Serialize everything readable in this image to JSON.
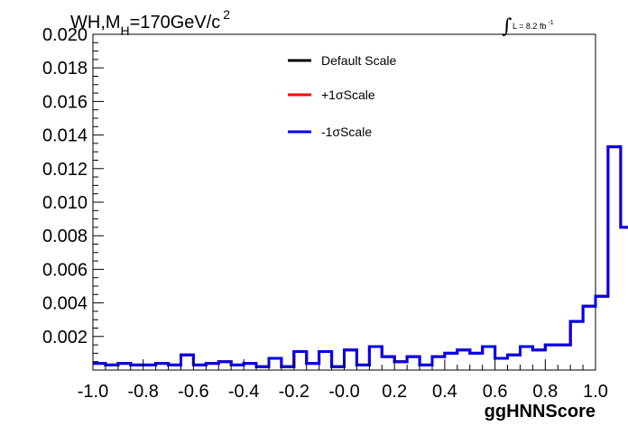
{
  "chart_data": {
    "type": "line",
    "title": {
      "main": "WH,M",
      "sub": "H",
      "rest": "=170GeV/c",
      "sup": "2"
    },
    "lumi": {
      "integral": "∫",
      "text": "L = 8.2 fb",
      "sup": "-1"
    },
    "xlabel": "ggHNNScore",
    "ylabel": "",
    "xlim": [
      -1.0,
      1.0
    ],
    "ylim": [
      0,
      0.02
    ],
    "xticks": [
      "-1.0",
      "-0.8",
      "-0.6",
      "-0.4",
      "-0.2",
      "-0.0",
      "0.2",
      "0.4",
      "0.6",
      "0.8",
      "1.0"
    ],
    "yticks": [
      "0.002",
      "0.004",
      "0.006",
      "0.008",
      "0.010",
      "0.012",
      "0.014",
      "0.016",
      "0.018",
      "0.020"
    ],
    "grid": false,
    "legend_position": "top-center",
    "bin_edges_start": -1.0,
    "bin_width": 0.05,
    "series": [
      {
        "name": "Default Scale",
        "color": "#000000",
        "values": [
          0.0004,
          0.0003,
          0.0004,
          0.0003,
          0.0003,
          0.0004,
          0.0003,
          0.0009,
          0.0003,
          0.0004,
          0.0005,
          0.0003,
          0.0004,
          0.0002,
          0.0007,
          0.0002,
          0.0011,
          0.0004,
          0.0011,
          0.0002,
          0.0012,
          0.0003,
          0.0014,
          0.0008,
          0.0005,
          0.0008,
          0.0003,
          0.0008,
          0.001,
          0.0012,
          0.001,
          0.0014,
          0.0007,
          0.0009,
          0.0014,
          0.0012,
          0.0015,
          0.0015,
          0.0029,
          0.0038,
          0.0044,
          0.0133,
          0.0085
        ]
      },
      {
        "name": "+1σScale",
        "color": "#ff0000",
        "values": [
          0.0004,
          0.0003,
          0.0004,
          0.0003,
          0.0003,
          0.0004,
          0.0003,
          0.0009,
          0.0003,
          0.0004,
          0.0005,
          0.0003,
          0.0004,
          0.0002,
          0.0007,
          0.0002,
          0.0011,
          0.0004,
          0.0011,
          0.0002,
          0.0012,
          0.0003,
          0.0014,
          0.0008,
          0.0005,
          0.0008,
          0.0003,
          0.0008,
          0.001,
          0.0012,
          0.001,
          0.0014,
          0.0007,
          0.0009,
          0.0014,
          0.0012,
          0.0015,
          0.0015,
          0.0029,
          0.0038,
          0.0044,
          0.0133,
          0.0085
        ]
      },
      {
        "name": "-1σScale",
        "color": "#0000ee",
        "values": [
          0.0004,
          0.0003,
          0.0004,
          0.0003,
          0.0003,
          0.0004,
          0.0003,
          0.0009,
          0.0003,
          0.0004,
          0.0005,
          0.0003,
          0.0004,
          0.0002,
          0.0007,
          0.0002,
          0.0011,
          0.0004,
          0.0011,
          0.0002,
          0.0012,
          0.0003,
          0.0014,
          0.0008,
          0.0005,
          0.0008,
          0.0003,
          0.0008,
          0.001,
          0.0012,
          0.001,
          0.0014,
          0.0007,
          0.0009,
          0.0014,
          0.0012,
          0.0015,
          0.0015,
          0.0029,
          0.0038,
          0.0044,
          0.0133,
          0.0085
        ]
      }
    ]
  }
}
